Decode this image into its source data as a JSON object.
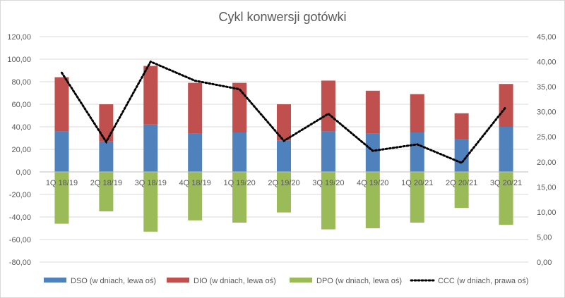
{
  "chart_data": {
    "type": "bar",
    "title": "Cykl konwersji gotówki",
    "categories": [
      "1Q 18/19",
      "2Q 18/19",
      "3Q 18/19",
      "4Q 18/19",
      "1Q 19/20",
      "2Q 19/20",
      "3Q 19/20",
      "4Q 19/20",
      "1Q 20/21",
      "2Q 20/21",
      "3Q 20/21"
    ],
    "left_axis": {
      "ylim": [
        -80,
        120
      ],
      "ticks": [
        "120,00",
        "100,00",
        "80,00",
        "60,00",
        "40,00",
        "20,00",
        "0,00",
        "-20,00",
        "-40,00",
        "-60,00",
        "-80,00"
      ]
    },
    "right_axis": {
      "ylim": [
        0,
        45
      ],
      "ticks": [
        "45,00",
        "40,00",
        "35,00",
        "30,00",
        "25,00",
        "20,00",
        "15,00",
        "10,00",
        "5,00",
        "0,00"
      ]
    },
    "grid": true,
    "legend_position": "bottom",
    "series": [
      {
        "name": "DSO (w dniach, lewa oś)",
        "kind": "bar",
        "axis": "left",
        "color": "#4f81bd",
        "values": [
          36,
          27,
          42,
          34,
          35,
          28,
          36,
          34,
          35,
          29,
          40
        ]
      },
      {
        "name": "DIO (w dniach, lewa oś)",
        "kind": "bar",
        "axis": "left",
        "color": "#c0504d",
        "values": [
          48,
          33,
          52,
          45,
          44,
          32,
          45,
          38,
          34,
          23,
          38
        ]
      },
      {
        "name": "DPO (w dniach, lewa oś)",
        "kind": "bar",
        "axis": "left",
        "color": "#9bbb59",
        "values": [
          -46,
          -35,
          -53,
          -43,
          -45,
          -36,
          -51,
          -50,
          -45,
          -32,
          -47
        ]
      },
      {
        "name": "CCC (w dniach, prawa oś)",
        "kind": "line",
        "axis": "right",
        "color": "#000000",
        "style": "dotted",
        "values": [
          37.8,
          24.0,
          40.0,
          36.2,
          34.5,
          24.2,
          29.6,
          22.2,
          23.5,
          19.8,
          31.0
        ]
      }
    ]
  }
}
